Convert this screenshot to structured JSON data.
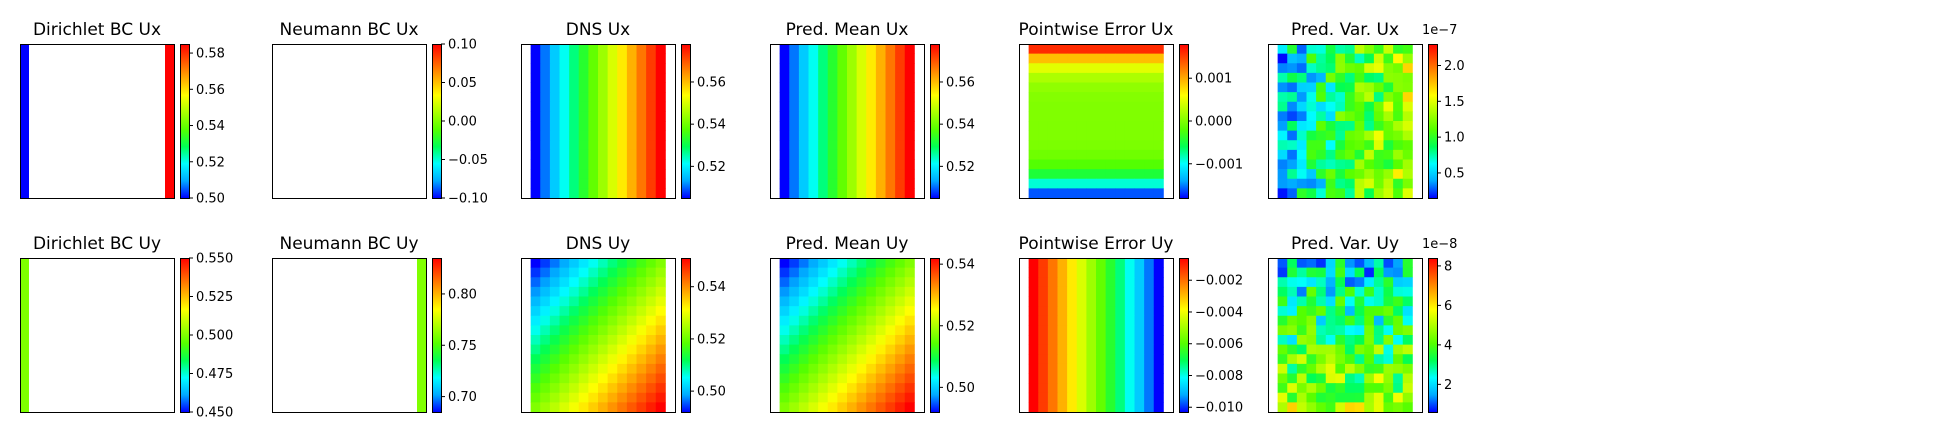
{
  "colormap": [
    "#0000ff",
    "#00aaff",
    "#00ffff",
    "#00ff55",
    "#55ff00",
    "#aaff00",
    "#ffff00",
    "#ffaa00",
    "#ff5500",
    "#ff0000"
  ],
  "chart_data": [
    {
      "id": "dir-ux",
      "type": "heatmap",
      "title": "Dirichlet BC Ux",
      "clim": [
        0.5,
        0.585
      ],
      "ticks": [
        "0.50",
        "0.52",
        "0.54",
        "0.56",
        "0.58"
      ],
      "tick_values": [
        0.5,
        0.52,
        0.54,
        0.56,
        0.58
      ],
      "offset": "",
      "field": {
        "kind": "edges",
        "left": 0.5,
        "right": 0.585,
        "top": null,
        "bottom": null,
        "strip": 0.06
      }
    },
    {
      "id": "neu-ux",
      "type": "heatmap",
      "title": "Neumann BC Ux",
      "clim": [
        -0.1,
        0.1
      ],
      "ticks": [
        "0.10",
        "0.05",
        "0.00",
        "−0.05",
        "−0.10"
      ],
      "tick_values": [
        0.1,
        0.05,
        0.0,
        -0.05,
        -0.1
      ],
      "offset": "",
      "field": {
        "kind": "blank"
      }
    },
    {
      "id": "dns-ux",
      "type": "heatmap",
      "title": "DNS Ux",
      "clim": [
        0.505,
        0.578
      ],
      "ticks": [
        "0.56",
        "0.54",
        "0.52"
      ],
      "tick_values": [
        0.56,
        0.54,
        0.52
      ],
      "offset": "",
      "field": {
        "kind": "grid",
        "n": 16,
        "a": 0.505,
        "b": 0.578,
        "bx": 1,
        "by": 0,
        "bxy": 0,
        "pad": true
      }
    },
    {
      "id": "pm-ux",
      "type": "heatmap",
      "title": "Pred. Mean Ux",
      "clim": [
        0.505,
        0.578
      ],
      "ticks": [
        "0.56",
        "0.54",
        "0.52"
      ],
      "tick_values": [
        0.56,
        0.54,
        0.52
      ],
      "offset": "",
      "field": {
        "kind": "grid",
        "n": 16,
        "a": 0.505,
        "b": 0.578,
        "bx": 1,
        "by": 0,
        "bxy": 0,
        "pad": true
      }
    },
    {
      "id": "err-ux",
      "type": "heatmap",
      "title": "Pointwise Error Ux",
      "clim": [
        -0.0018,
        0.0018
      ],
      "ticks": [
        "0.001",
        "0.000",
        "−0.001"
      ],
      "tick_values": [
        0.001,
        0.0,
        -0.001
      ],
      "offset": "",
      "field": {
        "kind": "grid",
        "n": 16,
        "a": -0.0016,
        "b": 0.0016,
        "bx": 0,
        "by": 0,
        "bxy": 0,
        "edge": "topbottom",
        "pad": true
      }
    },
    {
      "id": "var-ux",
      "type": "heatmap",
      "title": "Pred. Var. Ux",
      "clim": [
        1.5e-08,
        2.3e-07
      ],
      "ticks": [
        "2.0",
        "1.5",
        "1.0",
        "0.5"
      ],
      "tick_values": [
        2e-07,
        1.5e-07,
        1e-07,
        5e-08
      ],
      "offset": "1e−7",
      "field": {
        "kind": "grid",
        "n": 16,
        "a": 1.5e-08,
        "b": 2.3e-07,
        "bx": 0.6,
        "by": 0,
        "bxy": 0,
        "noise": 0.35,
        "pad": true
      }
    },
    {
      "id": "dir-uy",
      "type": "heatmap",
      "title": "Dirichlet BC Uy",
      "clim": [
        0.45,
        0.55
      ],
      "ticks": [
        "0.550",
        "0.525",
        "0.500",
        "0.475",
        "0.450"
      ],
      "tick_values": [
        0.55,
        0.525,
        0.5,
        0.475,
        0.45
      ],
      "offset": "",
      "field": {
        "kind": "edges",
        "left": 0.5,
        "right": null,
        "top": null,
        "bottom": null,
        "strip": 0.06
      }
    },
    {
      "id": "neu-uy",
      "type": "heatmap",
      "title": "Neumann BC Uy",
      "clim": [
        0.685,
        0.835
      ],
      "ticks": [
        "0.80",
        "0.75",
        "0.70"
      ],
      "tick_values": [
        0.8,
        0.75,
        0.7
      ],
      "offset": "",
      "field": {
        "kind": "edges",
        "left": null,
        "right": 0.76,
        "top": null,
        "bottom": null,
        "strip": 0.06
      }
    },
    {
      "id": "dns-uy",
      "type": "heatmap",
      "title": "DNS Uy",
      "clim": [
        0.492,
        0.551
      ],
      "ticks": [
        "0.54",
        "0.52",
        "0.50"
      ],
      "tick_values": [
        0.54,
        0.52,
        0.5
      ],
      "offset": "",
      "field": {
        "kind": "grid",
        "n": 16,
        "a": 0.492,
        "b": 0.551,
        "bx": 0.5,
        "by": 0.5,
        "bxy": 0,
        "pad": true
      }
    },
    {
      "id": "pm-uy",
      "type": "heatmap",
      "title": "Pred. Mean Uy",
      "clim": [
        0.492,
        0.542
      ],
      "ticks": [
        "0.54",
        "0.52",
        "0.50"
      ],
      "tick_values": [
        0.54,
        0.52,
        0.5
      ],
      "offset": "",
      "field": {
        "kind": "grid",
        "n": 16,
        "a": 0.492,
        "b": 0.542,
        "bx": 0.5,
        "by": 0.5,
        "bxy": 0,
        "pad": true
      }
    },
    {
      "id": "err-uy",
      "type": "heatmap",
      "title": "Pointwise Error Uy",
      "clim": [
        -0.0103,
        -0.0006
      ],
      "ticks": [
        "−0.002",
        "−0.004",
        "−0.006",
        "−0.008",
        "−0.010"
      ],
      "tick_values": [
        -0.002,
        -0.004,
        -0.006,
        -0.008,
        -0.01
      ],
      "offset": "",
      "field": {
        "kind": "grid",
        "n": 16,
        "a": -0.0006,
        "b": -0.0103,
        "bx": 1,
        "by": 0,
        "bxy": 0,
        "pad": true
      }
    },
    {
      "id": "var-uy",
      "type": "heatmap",
      "title": "Pred. Var. Uy",
      "clim": [
        6e-09,
        8.4e-08
      ],
      "ticks": [
        "8",
        "6",
        "4",
        "2"
      ],
      "tick_values": [
        8e-08,
        6e-08,
        4e-08,
        2e-08
      ],
      "offset": "1e−8",
      "field": {
        "kind": "grid",
        "n": 16,
        "a": 6e-09,
        "b": 8.4e-08,
        "bx": 0,
        "by": 0.55,
        "bxy": 0,
        "noise": 0.4,
        "pad": true
      }
    }
  ]
}
